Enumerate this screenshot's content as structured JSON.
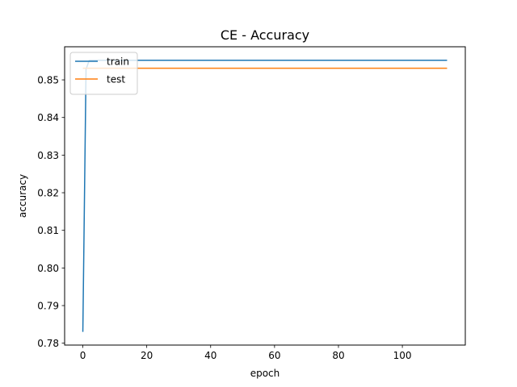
{
  "chart_data": {
    "type": "line",
    "title": "CE - Accuracy",
    "xlabel": "epoch",
    "ylabel": "accuracy",
    "xlim": [
      -5.7,
      119.7
    ],
    "ylim": [
      0.7795,
      0.8588
    ],
    "xticks": [
      0,
      20,
      40,
      60,
      80,
      100
    ],
    "yticks": [
      0.78,
      0.79,
      0.8,
      0.81,
      0.82,
      0.83,
      0.84,
      0.85
    ],
    "ytick_labels": [
      "0.78",
      "0.79",
      "0.80",
      "0.81",
      "0.82",
      "0.83",
      "0.84",
      "0.85"
    ],
    "grid": false,
    "legend_position": "upper-left",
    "series": [
      {
        "name": "train",
        "color": "#1f77b4",
        "x": [
          0,
          1,
          2,
          114
        ],
        "y": [
          0.783,
          0.8528,
          0.8552,
          0.8552
        ]
      },
      {
        "name": "test",
        "color": "#ff7f0e",
        "x": [
          0,
          1,
          114
        ],
        "y": [
          0.8531,
          0.8531,
          0.8531
        ]
      }
    ]
  }
}
